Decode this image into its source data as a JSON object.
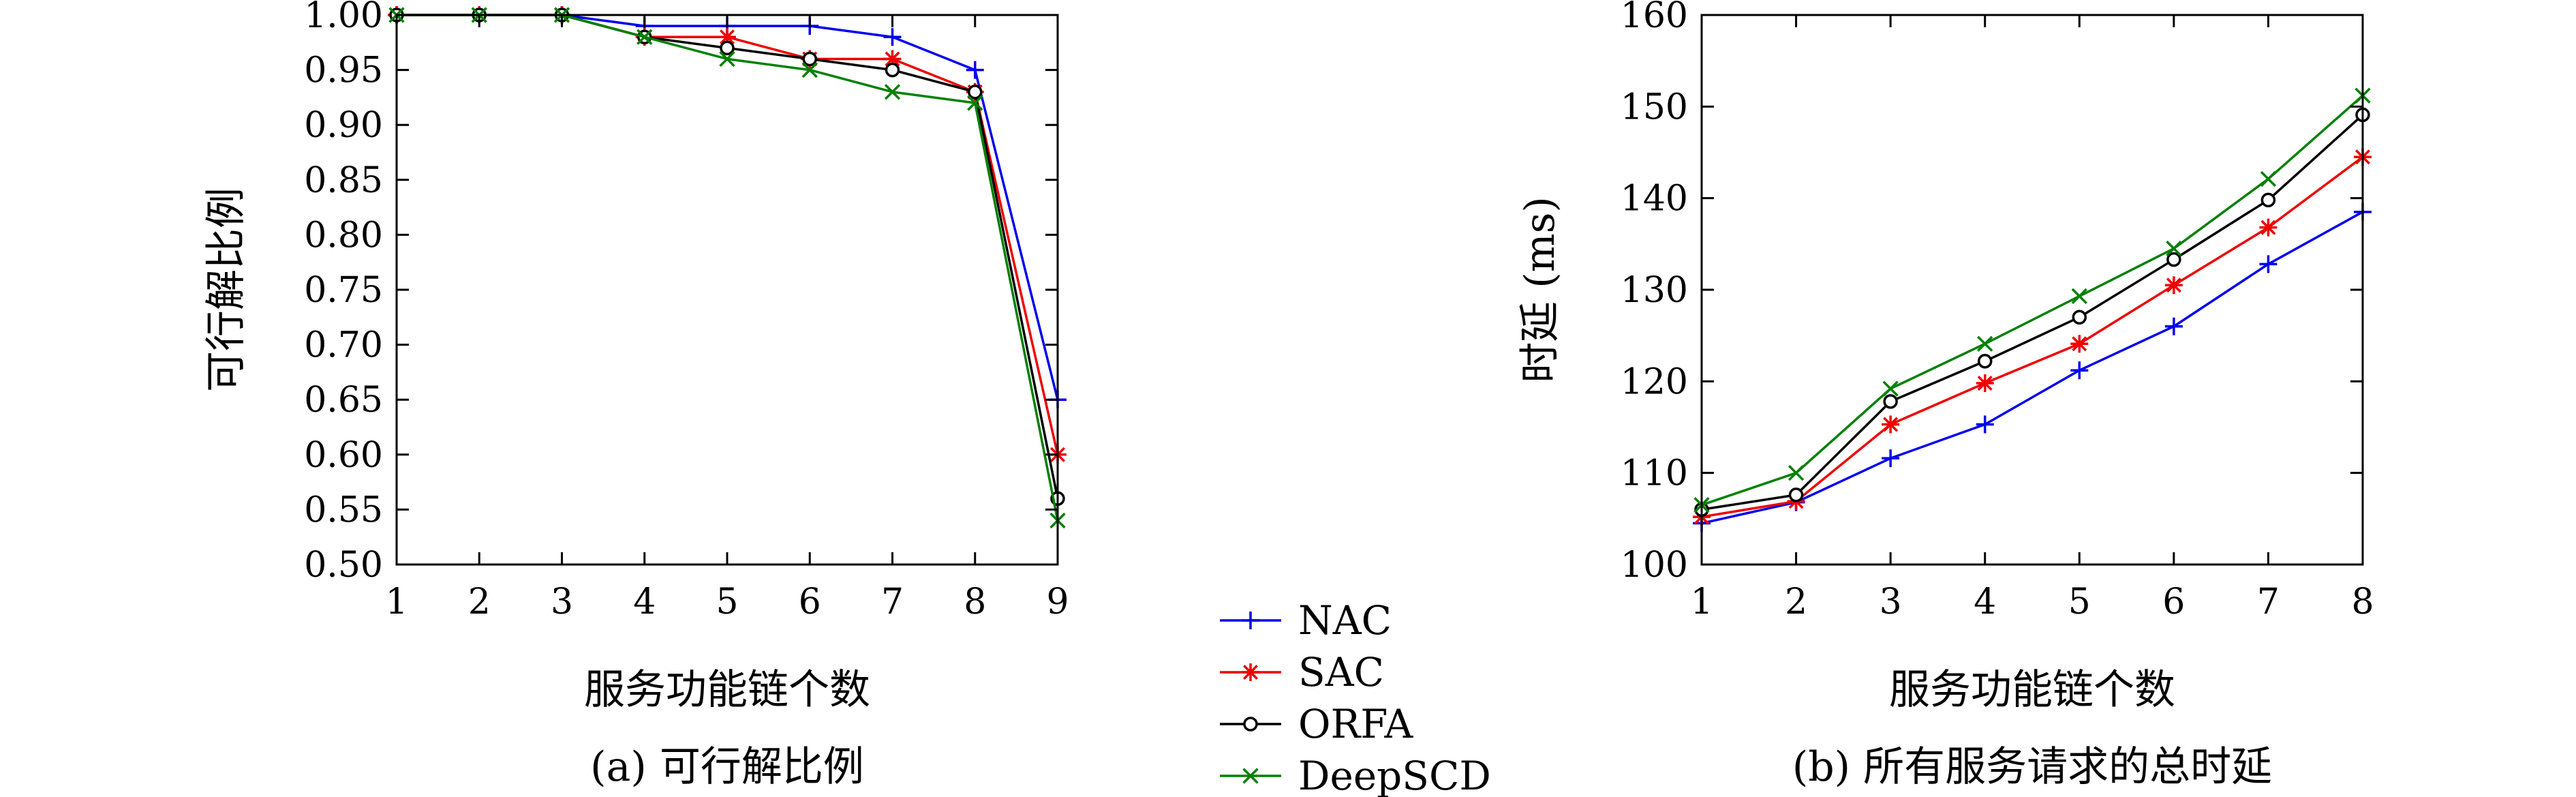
{
  "chart_data": [
    {
      "type": "line",
      "caption": "(a) 可行解比例",
      "xlabel": "服务功能链个数",
      "ylabel": "可行解比例",
      "x": [
        1,
        2,
        3,
        4,
        5,
        6,
        7,
        8,
        9
      ],
      "xlim": [
        1,
        9
      ],
      "ylim": [
        0.5,
        1.0
      ],
      "xticks": [
        "1",
        "2",
        "3",
        "4",
        "5",
        "6",
        "7",
        "8",
        "9"
      ],
      "yticks": [
        "0.50",
        "0.55",
        "0.60",
        "0.65",
        "0.70",
        "0.75",
        "0.80",
        "0.85",
        "0.90",
        "0.95",
        "1.00"
      ],
      "grid": false,
      "series": [
        {
          "name": "NAC",
          "color": "#0000ee",
          "marker": "plus",
          "values": [
            1.0,
            1.0,
            1.0,
            0.99,
            0.99,
            0.99,
            0.98,
            0.95,
            0.65
          ]
        },
        {
          "name": "SAC",
          "color": "#ee0000",
          "marker": "star",
          "values": [
            1.0,
            1.0,
            1.0,
            0.98,
            0.98,
            0.96,
            0.96,
            0.93,
            0.6
          ]
        },
        {
          "name": "ORFA",
          "color": "#000000",
          "marker": "circle",
          "values": [
            1.0,
            1.0,
            1.0,
            0.98,
            0.97,
            0.96,
            0.95,
            0.93,
            0.56
          ]
        },
        {
          "name": "DeepSCD",
          "color": "#008000",
          "marker": "cross",
          "values": [
            1.0,
            1.0,
            1.0,
            0.98,
            0.96,
            0.95,
            0.93,
            0.92,
            0.54
          ]
        }
      ]
    },
    {
      "type": "line",
      "caption": "(b) 所有服务请求的总时延",
      "xlabel": "服务功能链个数",
      "ylabel": "时延 (ms)",
      "x": [
        1,
        2,
        3,
        4,
        5,
        6,
        7,
        8
      ],
      "xlim": [
        1,
        8
      ],
      "ylim": [
        100,
        160
      ],
      "xticks": [
        "1",
        "2",
        "3",
        "4",
        "5",
        "6",
        "7",
        "8"
      ],
      "yticks": [
        "100",
        "110",
        "120",
        "130",
        "140",
        "150",
        "160"
      ],
      "grid": false,
      "series": [
        {
          "name": "NAC",
          "color": "#0000ee",
          "marker": "plus",
          "values": [
            104.5,
            106.8,
            111.6,
            115.3,
            121.2,
            126.0,
            132.8,
            138.5
          ]
        },
        {
          "name": "SAC",
          "color": "#ee0000",
          "marker": "star",
          "values": [
            105.2,
            106.9,
            115.3,
            119.8,
            124.1,
            130.5,
            136.8,
            144.5
          ]
        },
        {
          "name": "ORFA",
          "color": "#000000",
          "marker": "circle",
          "values": [
            106.0,
            107.6,
            117.8,
            122.2,
            127.0,
            133.3,
            139.8,
            149.1
          ]
        },
        {
          "name": "DeepSCD",
          "color": "#008000",
          "marker": "cross",
          "values": [
            106.5,
            110.0,
            119.2,
            124.1,
            129.3,
            134.5,
            142.1,
            151.2
          ]
        }
      ]
    }
  ],
  "legend": {
    "placement": "between panels, bottom",
    "items": [
      {
        "name": "NAC",
        "color": "#0000ee",
        "marker": "plus"
      },
      {
        "name": "SAC",
        "color": "#ee0000",
        "marker": "star"
      },
      {
        "name": "ORFA",
        "color": "#000000",
        "marker": "circle"
      },
      {
        "name": "DeepSCD",
        "color": "#008000",
        "marker": "cross"
      }
    ]
  }
}
